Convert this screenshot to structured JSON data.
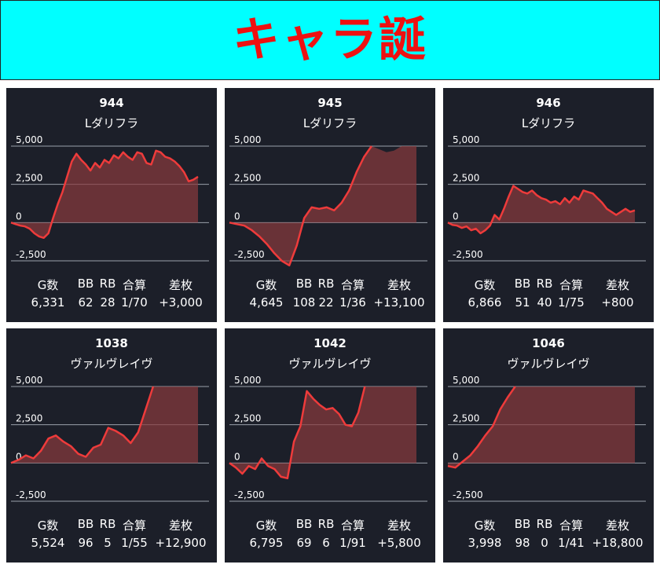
{
  "header": {
    "title": "キャラ誕"
  },
  "stat_headers": [
    "G数",
    "BB",
    "RB",
    "合算",
    "差枚"
  ],
  "colors": {
    "accent_line": "#ee3b3b",
    "header_bg": "#00ffff",
    "card_bg": "#1c1f29"
  },
  "chart_data": [
    {
      "type": "area",
      "number": "944",
      "name": "Lダリフラ",
      "ylim": [
        -2500,
        5000
      ],
      "yticks": [
        "5,000",
        "2,500",
        "0",
        "-2,500"
      ],
      "x": [
        0,
        1,
        2,
        3,
        4,
        5,
        6,
        7,
        8,
        9,
        10,
        11,
        12,
        13,
        14,
        15,
        16,
        17,
        18,
        19,
        20,
        21,
        22,
        23,
        24,
        25,
        26,
        27,
        28,
        29,
        30,
        31,
        32,
        33,
        34,
        35,
        36,
        37,
        38,
        39,
        40
      ],
      "values": [
        0,
        -100,
        -200,
        -250,
        -400,
        -700,
        -900,
        -1000,
        -700,
        300,
        1200,
        2000,
        3000,
        4000,
        4500,
        4100,
        3800,
        3400,
        3900,
        3600,
        4100,
        3900,
        4400,
        4200,
        4600,
        4300,
        4100,
        4600,
        4500,
        3900,
        3800,
        4700,
        4600,
        4300,
        4200,
        4000,
        3700,
        3300,
        2700,
        2800,
        3000
      ]
    },
    {
      "type": "area",
      "number": "945",
      "name": "Lダリフラ",
      "ylim": [
        -2500,
        5000
      ],
      "yticks": [
        "5,000",
        "2,500",
        "0",
        "-2,500"
      ],
      "x": [
        0,
        1,
        2,
        3,
        4,
        5,
        6,
        7,
        8,
        9,
        10,
        11,
        12,
        13,
        14,
        15,
        16,
        17,
        18,
        19,
        20,
        21,
        22,
        23,
        24,
        25
      ],
      "values": [
        0,
        -100,
        -200,
        -500,
        -900,
        -1400,
        -2000,
        -2500,
        -2800,
        -1500,
        300,
        1000,
        900,
        1000,
        800,
        1300,
        2100,
        3300,
        4300,
        5000,
        4800,
        4600,
        4700,
        5000,
        5000,
        5000
      ],
      "capped": true
    },
    {
      "type": "area",
      "number": "946",
      "name": "Lダリフラ",
      "ylim": [
        -2500,
        5000
      ],
      "yticks": [
        "5,000",
        "2,500",
        "0",
        "-2,500"
      ],
      "x": [
        0,
        1,
        2,
        3,
        4,
        5,
        6,
        7,
        8,
        9,
        10,
        11,
        12,
        13,
        14,
        15,
        16,
        17,
        18,
        19,
        20,
        21,
        22,
        23,
        24,
        25,
        26,
        27,
        28,
        29,
        30,
        31,
        32,
        33,
        34,
        35,
        36,
        37,
        38,
        39,
        40
      ],
      "values": [
        0,
        -150,
        -200,
        -350,
        -250,
        -500,
        -400,
        -700,
        -500,
        -200,
        500,
        200,
        900,
        1700,
        2400,
        2200,
        2000,
        1900,
        2100,
        1800,
        1600,
        1500,
        1300,
        1400,
        1200,
        1600,
        1300,
        1700,
        1500,
        2100,
        2000,
        1900,
        1600,
        1300,
        900,
        700,
        500,
        700,
        900,
        700,
        800
      ]
    },
    {
      "type": "area",
      "number": "1038",
      "name": "ヴァルヴレイヴ",
      "ylim": [
        -2500,
        5000
      ],
      "yticks": [
        "5,000",
        "2,500",
        "0",
        "-2,500"
      ],
      "x": [
        0,
        1,
        2,
        3,
        4,
        5,
        6,
        7,
        8,
        9,
        10,
        11,
        12,
        13,
        14,
        15,
        16,
        17,
        18,
        19,
        20,
        21,
        22,
        23,
        24,
        25
      ],
      "values": [
        0,
        200,
        500,
        300,
        800,
        1600,
        1800,
        1400,
        1100,
        600,
        400,
        1000,
        1200,
        2300,
        2100,
        1800,
        1300,
        2000,
        3500,
        5000,
        5000,
        5000,
        5000,
        5000,
        5000,
        5000
      ],
      "capped": true
    },
    {
      "type": "area",
      "number": "1042",
      "name": "ヴァルヴレイヴ",
      "ylim": [
        -2500,
        5000
      ],
      "yticks": [
        "5,000",
        "2,500",
        "0",
        "-2,500"
      ],
      "x": [
        0,
        1,
        2,
        3,
        4,
        5,
        6,
        7,
        8,
        9,
        10,
        11,
        12,
        13,
        14,
        15,
        16,
        17,
        18,
        19,
        20,
        21,
        22,
        23,
        24,
        25,
        26,
        27,
        28,
        29
      ],
      "values": [
        0,
        -300,
        -700,
        -200,
        -400,
        300,
        -200,
        -400,
        -900,
        -1000,
        1400,
        2400,
        4700,
        4200,
        3800,
        3500,
        3600,
        3200,
        2500,
        2400,
        3300,
        5000,
        5000,
        5000,
        5000,
        5000,
        5000,
        5000,
        5000,
        5000
      ],
      "capped": true
    },
    {
      "type": "area",
      "number": "1046",
      "name": "ヴァルヴレイヴ",
      "ylim": [
        -2500,
        5000
      ],
      "yticks": [
        "5,000",
        "2,500",
        "0",
        "-2,500"
      ],
      "x": [
        0,
        1,
        2,
        3,
        4,
        5,
        6,
        7,
        8,
        9,
        10,
        11,
        12,
        13,
        14,
        15,
        16,
        17,
        18,
        19,
        20,
        21,
        22,
        23,
        24,
        25
      ],
      "values": [
        -200,
        -300,
        100,
        500,
        1100,
        1800,
        2400,
        3500,
        4300,
        5000,
        5000,
        5000,
        5000,
        5000,
        5000,
        5000,
        5000,
        5000,
        5000,
        5000,
        5000,
        5000,
        5000,
        5000,
        5000,
        5000
      ],
      "capped": true
    }
  ],
  "stats": [
    [
      "6,331",
      "62",
      "28",
      "1/70",
      "+3,000"
    ],
    [
      "4,645",
      "108",
      "22",
      "1/36",
      "+13,100"
    ],
    [
      "6,866",
      "51",
      "40",
      "1/75",
      "+800"
    ],
    [
      "5,524",
      "96",
      "5",
      "1/55",
      "+12,900"
    ],
    [
      "6,795",
      "69",
      "6",
      "1/91",
      "+5,800"
    ],
    [
      "3,998",
      "98",
      "0",
      "1/41",
      "+18,800"
    ]
  ]
}
